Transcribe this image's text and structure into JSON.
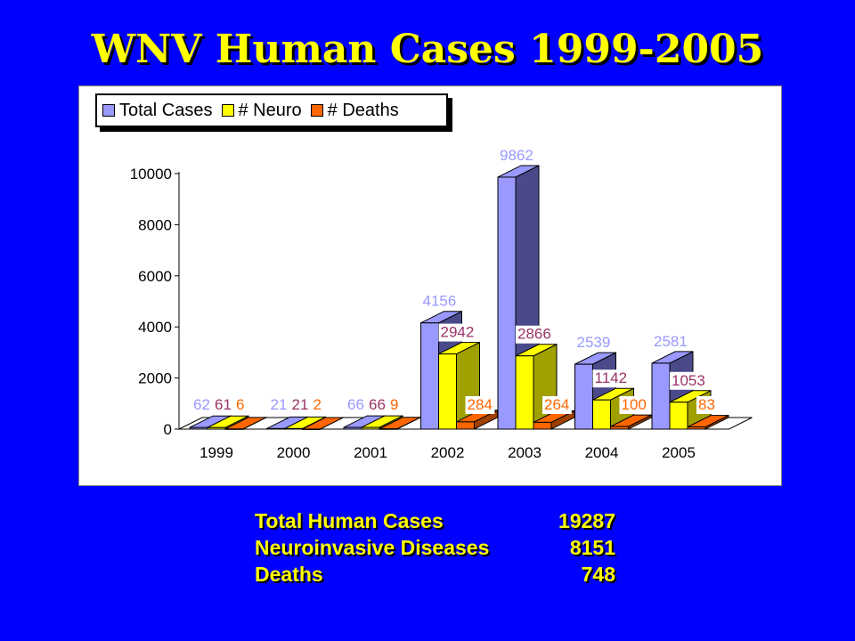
{
  "slide": {
    "title": "WNV Human Cases 1999-2005"
  },
  "chart_data": {
    "type": "bar",
    "categories": [
      "1999",
      "2000",
      "2001",
      "2002",
      "2003",
      "2004",
      "2005"
    ],
    "series": [
      {
        "name": "Total Cases",
        "values": [
          62,
          21,
          66,
          4156,
          9862,
          2539,
          2581
        ],
        "color": "#9999ff",
        "side_color": "#4a4a8a",
        "label_color": "#9999ff"
      },
      {
        "name": "# Neuro",
        "values": [
          61,
          21,
          66,
          2942,
          2866,
          1142,
          1053
        ],
        "color": "#ffff00",
        "side_color": "#a0a000",
        "label_color": "#993366"
      },
      {
        "name": "# Deaths",
        "values": [
          6,
          2,
          9,
          284,
          264,
          100,
          83
        ],
        "color": "#ff6600",
        "side_color": "#a04000",
        "label_color": "#ff6600"
      }
    ],
    "y_ticks": [
      "0",
      "2000",
      "4000",
      "6000",
      "8000",
      "10000"
    ],
    "ylim": [
      0,
      10000
    ],
    "legend_position": "top-left",
    "grid": false
  },
  "summary": {
    "rows": [
      {
        "label": "Total Human Cases",
        "value": "19287"
      },
      {
        "label": "Neuroinvasive Diseases",
        "value": "8151"
      },
      {
        "label": "Deaths",
        "value": "748"
      }
    ]
  },
  "colors": {
    "background": "#0000ff",
    "title": "#ffff00",
    "summary_text": "#ffff00"
  }
}
